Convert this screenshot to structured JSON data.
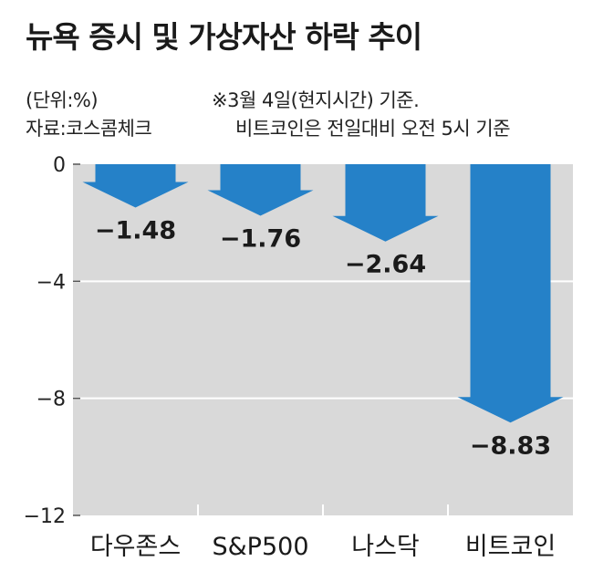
{
  "title": "뉴욕 증시 및 가상자산 하락 추이",
  "unit_note": "(단위:%)",
  "source_note": "자료:코스콤체크",
  "date_note": "※3월 4일(현지시간) 기준.",
  "bitcoin_note": "비트코인은 전일대비 오전 5시 기준",
  "colors": {
    "arrow": "#2581c8",
    "plot_bg": "#d9d9d9",
    "grid": "#ffffff"
  },
  "chart_data": {
    "type": "bar",
    "categories": [
      "다우존스",
      "S&P500",
      "나스닥",
      "비트코인"
    ],
    "values": [
      -1.48,
      -1.76,
      -2.64,
      -8.83
    ],
    "value_labels": [
      "−1.48",
      "−1.76",
      "−2.64",
      "−8.83"
    ],
    "ylim": [
      -12,
      0
    ],
    "yticks": [
      0,
      -4,
      -8,
      -12
    ],
    "ytick_labels": [
      "0",
      "−4",
      "−8",
      "−12"
    ],
    "grid": true,
    "xlabel": "",
    "ylabel": ""
  }
}
